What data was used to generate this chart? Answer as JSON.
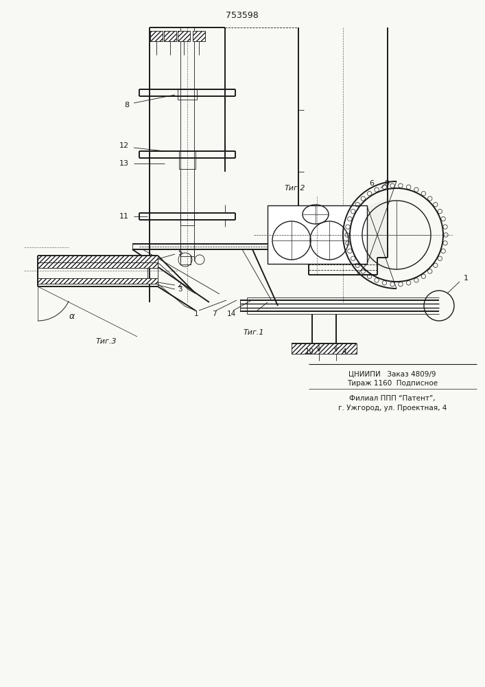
{
  "patent_number": "753598",
  "bg_color": "#f8f8f4",
  "line_color": "#1a1a1a",
  "fig1_caption": "Τиг.1",
  "fig2_caption": "Τиг.2",
  "fig3_caption": "Τиг.3",
  "footer_line1": "ЦНИИПИ   Заказ 4809/9",
  "footer_line2": "Тираж 1160  Подписное",
  "footer_line3": "Филиал ППП “Патент”,",
  "footer_line4": "г. Ужгород, ул. Проектная, 4",
  "lw_thin": 0.6,
  "lw_med": 1.0,
  "lw_thick": 1.4
}
